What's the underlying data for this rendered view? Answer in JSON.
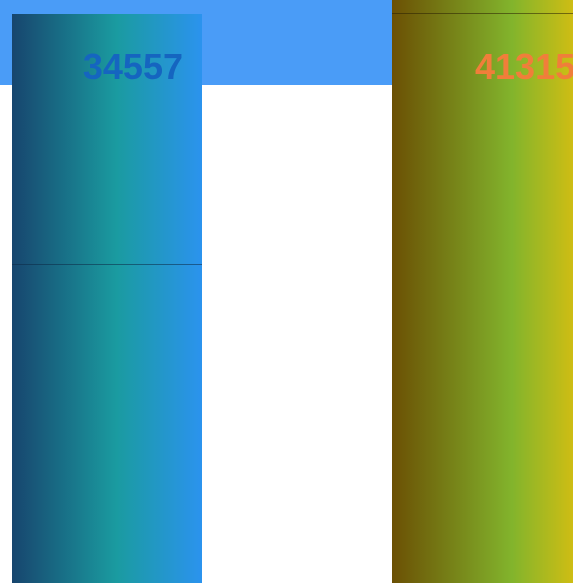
{
  "chart_data": {
    "type": "bar",
    "categories": [
      "",
      ""
    ],
    "values": [
      34557,
      41315
    ],
    "value_labels": [
      "34557",
      "41315"
    ],
    "title": "",
    "xlabel": "",
    "ylabel": "",
    "grid": false,
    "legend": "none",
    "colors": {
      "band": "#4a9cf7",
      "label_1": "#1565c0",
      "label_2": "#f07e3a",
      "gradient_1": [
        "#17456e",
        "#1a9ba0",
        "#2b93ee"
      ],
      "gradient_2": [
        "#6b5004",
        "#82b42c",
        "#e6c00c"
      ]
    }
  }
}
